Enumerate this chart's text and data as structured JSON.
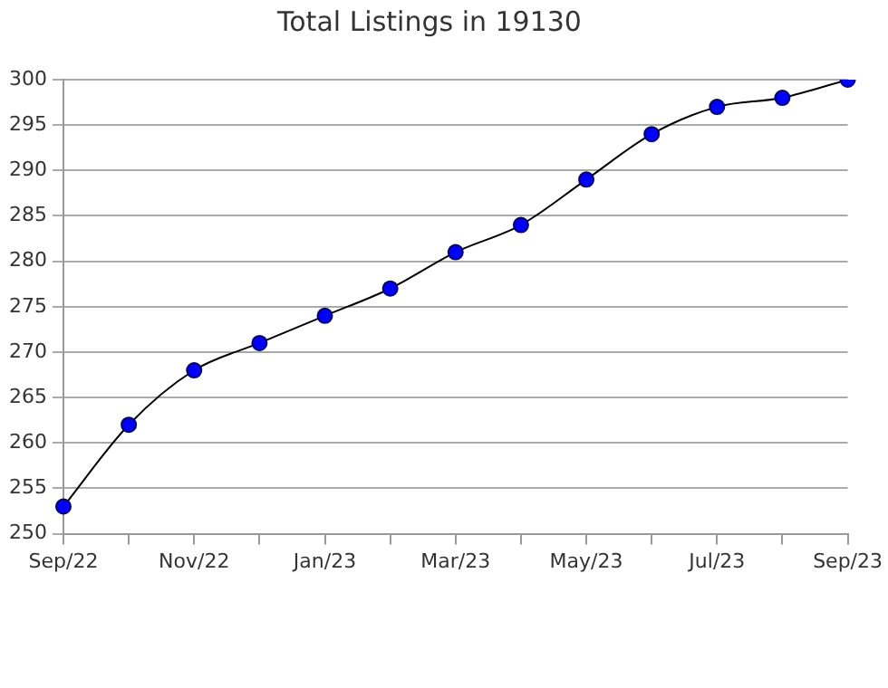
{
  "chart_data": {
    "type": "line",
    "title": "Total Listings in 19130",
    "categories": [
      "Sep/22",
      null,
      "Nov/22",
      null,
      "Jan/23",
      null,
      "Mar/23",
      null,
      "May/23",
      null,
      "Jul/23",
      null,
      "Sep/23"
    ],
    "series": [
      {
        "color": "#0000ff",
        "values": [
          253,
          262,
          268,
          271,
          274,
          277,
          281,
          284,
          289,
          294,
          297,
          298,
          300
        ]
      }
    ],
    "ylim": [
      250,
      300
    ],
    "yticks": [
      250,
      255,
      260,
      265,
      270,
      275,
      280,
      285,
      290,
      295,
      300
    ],
    "grid": "y",
    "legend": false,
    "marker": "circle",
    "line_style": "solid"
  }
}
